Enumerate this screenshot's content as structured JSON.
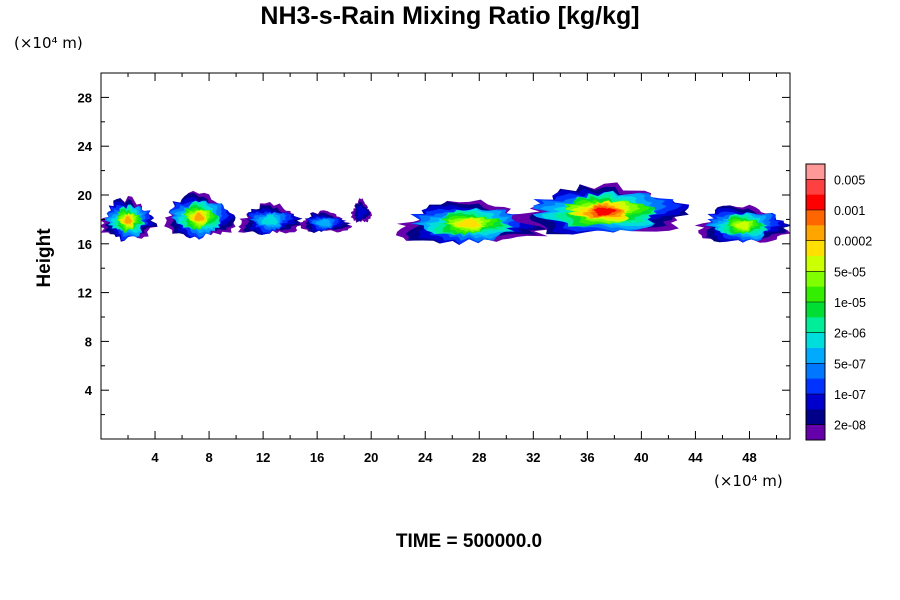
{
  "chart_data": {
    "type": "heatmap",
    "title": "NH3-s-Rain Mixing Ratio [kg/kg]",
    "ylabel": "Height",
    "xlabel": "",
    "x_unit": "(×10⁴ m)",
    "y_unit": "(×10⁴ m)",
    "xlim": [
      0,
      51
    ],
    "ylim": [
      0,
      30
    ],
    "x_ticks": [
      4,
      8,
      12,
      16,
      20,
      24,
      28,
      32,
      36,
      40,
      44,
      48
    ],
    "y_ticks": [
      4,
      8,
      12,
      16,
      20,
      24,
      28
    ],
    "time_label": "TIME = 500000.0",
    "colorbar": {
      "labels": [
        "0.005",
        "0.001",
        "0.0002",
        "5e-05",
        "1e-05",
        "2e-06",
        "5e-07",
        "1e-07",
        "2e-08"
      ],
      "colors": [
        "#FF9999",
        "#FF4040",
        "#FF0000",
        "#FF6600",
        "#FFA500",
        "#FFE000",
        "#CCFF00",
        "#7FFF00",
        "#33EE00",
        "#00DD33",
        "#00EE99",
        "#00DDDD",
        "#00AAFF",
        "#0077FF",
        "#0033FF",
        "#0000CC",
        "#000088",
        "#6600AA"
      ]
    },
    "cells": [
      {
        "x": [
          0,
          4
        ],
        "y": [
          16.2,
          19.6
        ],
        "peak": 0.9
      },
      {
        "x": [
          4.5,
          10
        ],
        "y": [
          16.3,
          20.0
        ],
        "peak": 0.88
      },
      {
        "x": [
          10,
          15
        ],
        "y": [
          16.6,
          19.2
        ],
        "peak": 0.45
      },
      {
        "x": [
          14.5,
          18.5
        ],
        "y": [
          16.8,
          18.6
        ],
        "peak": 0.4
      },
      {
        "x": [
          18.5,
          20
        ],
        "y": [
          17.6,
          19.6
        ],
        "peak": 0.1
      },
      {
        "x": [
          21.5,
          33
        ],
        "y": [
          15.9,
          19.4
        ],
        "peak": 0.82
      },
      {
        "x": [
          31,
          43.5
        ],
        "y": [
          16.6,
          20.7
        ],
        "peak": 0.98
      },
      {
        "x": [
          44,
          51
        ],
        "y": [
          15.9,
          19.1
        ],
        "peak": 0.72
      }
    ]
  }
}
